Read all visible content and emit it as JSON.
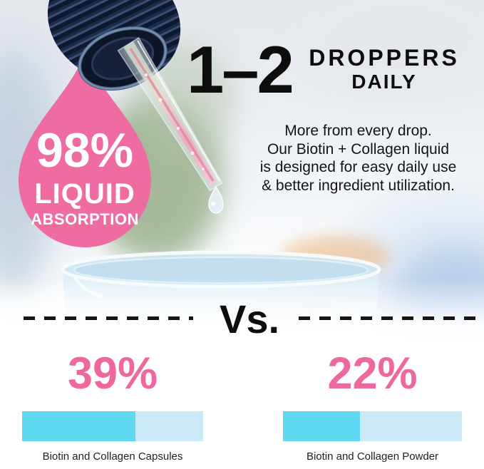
{
  "hero": {
    "badge": {
      "value": "98%",
      "line1": "LIQUID",
      "line2": "ABSORPTION"
    },
    "headline": {
      "range": "1–2",
      "word1": "DROPPERS",
      "word2": "DAILY"
    },
    "paragraph": {
      "lines": [
        "More from every drop.",
        "Our Biotin + Collagen liquid",
        "is designed for easy daily use",
        "& better ingredient utilization."
      ]
    }
  },
  "versus": {
    "label": "Vs."
  },
  "chart_data": {
    "type": "bar",
    "orientation": "horizontal",
    "title": "Vs.",
    "categories": [
      "Biotin and Collagen Capsules",
      "Biotin and Collagen Powder"
    ],
    "values": [
      39,
      22
    ],
    "value_labels": [
      "39%",
      "22%"
    ],
    "unit": "%",
    "comparison_reference": "98% LIQUID ABSORPTION",
    "bar_fill_fractions": [
      0.625,
      0.43
    ],
    "colors": {
      "value_text": "#ee679f",
      "bar_fill": "#5fd9f1",
      "bar_track": "#c9eaf6"
    }
  },
  "colors": {
    "accent_pink": "#ef6ca2",
    "accent_cyan": "#5fd9f1",
    "cyan_track": "#c9eaf6",
    "headline_text": "#0d0d0d",
    "dash": "#151515",
    "cap_navy": "#16243f"
  }
}
